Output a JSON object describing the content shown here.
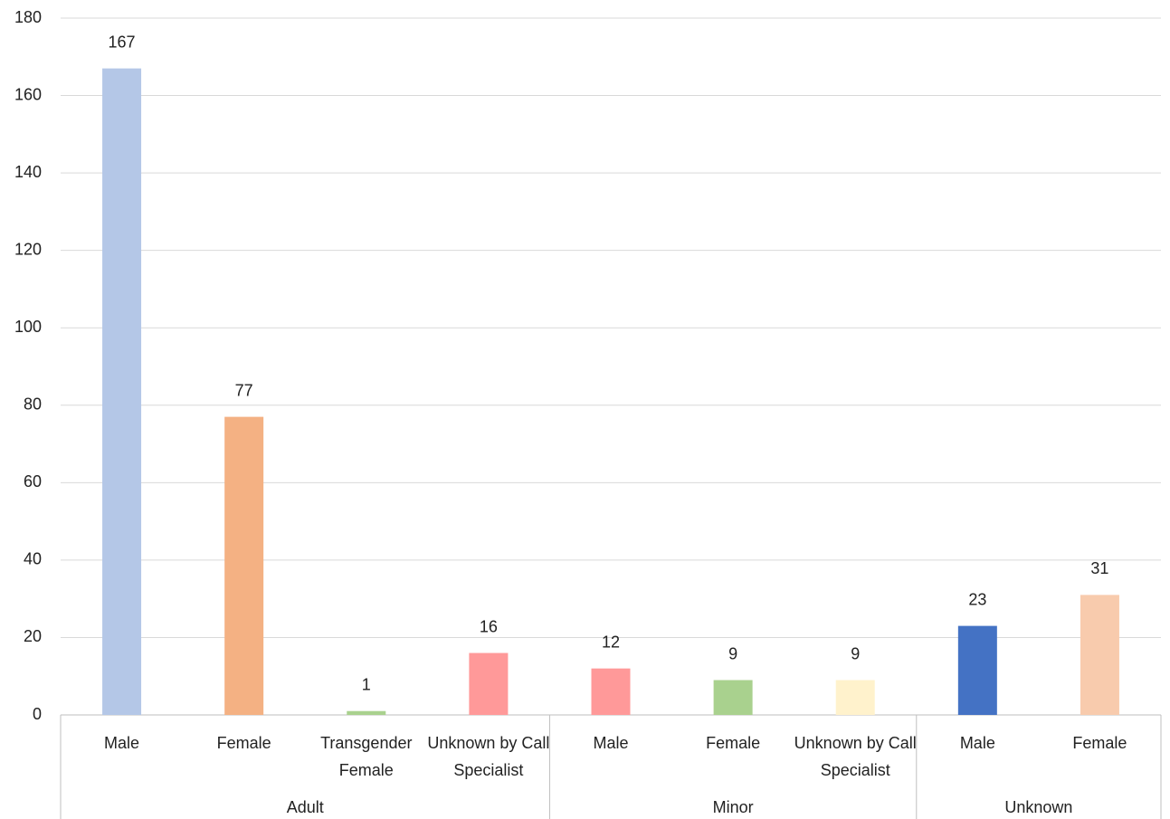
{
  "chart_data": {
    "type": "bar",
    "groups": [
      {
        "name": "Adult",
        "categories": [
          "Male",
          "Female",
          "Transgender Female",
          "Unknown by Call Specialist"
        ],
        "values": [
          167,
          77,
          1,
          16
        ],
        "colors": [
          "#b4c7e7",
          "#f4b183",
          "#a9d18e",
          "#ff9999"
        ]
      },
      {
        "name": "Minor",
        "categories": [
          "Male",
          "Female",
          "Unknown by Call Specialist"
        ],
        "values": [
          12,
          9,
          9
        ],
        "colors": [
          "#ff9999",
          "#a9d18e",
          "#fff2cc"
        ]
      },
      {
        "name": "Unknown",
        "categories": [
          "Male",
          "Female"
        ],
        "values": [
          23,
          31
        ],
        "colors": [
          "#4472c4",
          "#f8cbad"
        ]
      }
    ],
    "ylim": [
      0,
      180
    ],
    "yticks": [
      0,
      20,
      40,
      60,
      80,
      100,
      120,
      140,
      160,
      180
    ],
    "grid": true
  }
}
